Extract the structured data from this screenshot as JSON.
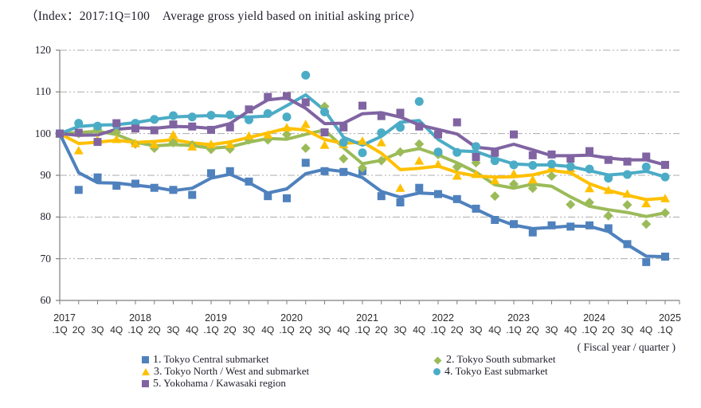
{
  "title": "（Index：2017:1Q=100　Average gross yield based on initial asking price）",
  "axis_note": "( Fiscal year / quarter )",
  "chart_data": {
    "type": "line",
    "title": "Average gross yield based on initial asking price, Index 2017:1Q=100",
    "ylim": [
      60,
      120
    ],
    "yticks": [
      60,
      70,
      80,
      90,
      100,
      110,
      120
    ],
    "grid": "horizontal-dashed",
    "legend_position": "bottom",
    "x_years": [
      "2017",
      "2018",
      "2019",
      "2020",
      "2021",
      "2022",
      "2023",
      "2024",
      "2025"
    ],
    "x_quarter_labels": [
      ".1Q",
      "2Q",
      "3Q",
      "4Q",
      ".1Q",
      "2Q",
      "3Q",
      "4Q",
      ".1Q",
      "2Q",
      "3Q",
      "4Q",
      ".1Q",
      "2Q",
      "3Q",
      "4Q",
      ".1Q",
      "2Q",
      "3Q",
      "4Q",
      ".1Q",
      "2Q",
      "3Q",
      "4Q",
      ".1Q",
      "2Q",
      "3Q",
      "4Q",
      ".1Q",
      "2Q",
      "3Q",
      "4Q",
      ".1Q"
    ],
    "colors": {
      "axis": "#7f7f7f",
      "gridline": "#ababab",
      "tokyo_central": "#4F81BD",
      "tokyo_south": "#9BBB59",
      "tokyo_north_west": "#FFC000",
      "tokyo_east": "#4BACC6",
      "yokohama_kawasaki": "#8064A2"
    },
    "series": [
      {
        "name": "1.  Tokyo Central submarket",
        "marker": "square",
        "color": "#4F81BD",
        "values": [
          100,
          86.5,
          89.5,
          87.5,
          88,
          87,
          86.5,
          85.3,
          90.5,
          91,
          88.5,
          85,
          84.5,
          93,
          91,
          90.8,
          91,
          85,
          83.5,
          87,
          85.5,
          84.3,
          82,
          79.3,
          78.3,
          76.3,
          78,
          77.7,
          78,
          77.3,
          73.5,
          69.2,
          70.5
        ]
      },
      {
        "name": "2.  Tokyo South submarket",
        "marker": "diamond",
        "color": "#9BBB59",
        "values": [
          100,
          100,
          101,
          100.3,
          97.5,
          96.5,
          97.8,
          97.3,
          96.2,
          96.3,
          98.5,
          98.5,
          99.8,
          96.5,
          106.5,
          94,
          91.8,
          93.5,
          95.6,
          97.5,
          95,
          92,
          93,
          85,
          87.9,
          86.9,
          89.8,
          83,
          83.5,
          80.3,
          82.9,
          78.3,
          81
        ]
      },
      {
        "name": "3.  Tokyo North / West and  submarket",
        "marker": "triangle",
        "color": "#FFC000",
        "values": [
          100,
          96,
          98.5,
          98.7,
          97.7,
          97.5,
          99.8,
          96.9,
          97.5,
          97.5,
          99.5,
          99.8,
          101.5,
          102.3,
          97.3,
          97.5,
          98.3,
          97.9,
          87,
          93.5,
          92.7,
          89.9,
          90.3,
          88.8,
          90.4,
          89,
          92,
          91.7,
          86.9,
          86.5,
          85.6,
          83.3,
          84.5
        ]
      },
      {
        "name": "4.  Tokyo East submarket",
        "marker": "circle",
        "color": "#4BACC6",
        "values": [
          100,
          102.5,
          101.8,
          102.1,
          102.5,
          103.4,
          104.3,
          104,
          104.4,
          104.5,
          103.3,
          104.8,
          104,
          114,
          105.2,
          97.9,
          95.4,
          100.2,
          101.5,
          107.7,
          95.6,
          95.5,
          96.9,
          93.5,
          92.5,
          92.4,
          92.7,
          92.1,
          91.5,
          89.3,
          90.2,
          92,
          89.6
        ]
      },
      {
        "name": "5.  Yokohama / Kawasaki region",
        "marker": "square",
        "color": "#8064A2",
        "values": [
          100,
          100.2,
          98,
          102.5,
          101.2,
          100.8,
          102.2,
          101.7,
          100.9,
          101.5,
          105.8,
          108.8,
          109,
          107.5,
          100.3,
          101.5,
          106.7,
          104.2,
          105,
          101.7,
          99.8,
          102.7,
          94.4,
          95.4,
          99.8,
          94.8,
          95,
          94,
          95.8,
          93.7,
          93.3,
          94.5,
          92.5
        ]
      }
    ]
  }
}
